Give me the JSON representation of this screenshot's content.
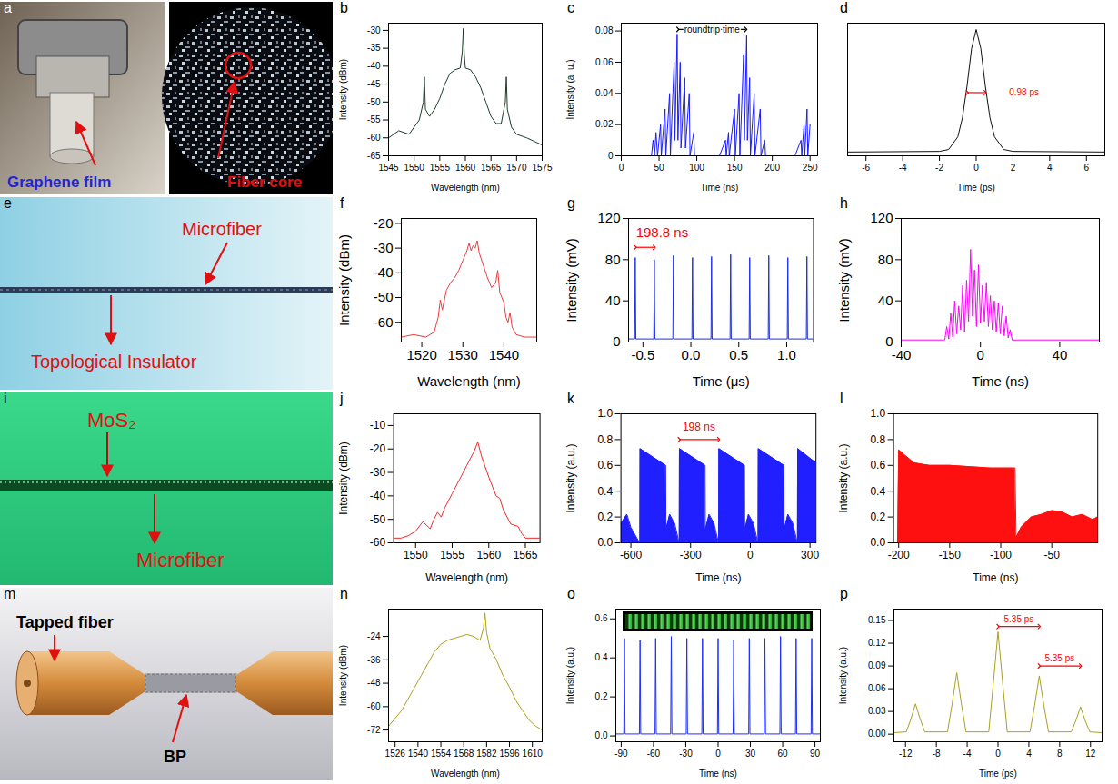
{
  "images": [
    {
      "panel": "a",
      "labels": [
        "Graphene film",
        "Fiber core"
      ]
    },
    {
      "panel": "e",
      "labels": [
        "Microfiber",
        "Topological Insulator"
      ]
    },
    {
      "panel": "i",
      "labels": [
        "MoS₂",
        "Microfiber"
      ]
    },
    {
      "panel": "m",
      "labels": [
        "Tapped fiber",
        "BP"
      ]
    }
  ],
  "chart_data": [
    {
      "panel": "b",
      "type": "line",
      "color": "#1e3b2b",
      "xlabel": "Wavelength (nm)",
      "ylabel": "Intensity (dBm)",
      "xlim": [
        1545,
        1575
      ],
      "ylim": [
        -65,
        -28
      ],
      "xticks": [
        1545,
        1550,
        1555,
        1560,
        1565,
        1570,
        1575
      ],
      "yticks": [
        -65,
        -60,
        -55,
        -50,
        -45,
        -40,
        -35,
        -30
      ],
      "x": [
        1545,
        1547,
        1549,
        1550,
        1551,
        1551.8,
        1552,
        1552.2,
        1553,
        1554,
        1555,
        1556,
        1557,
        1558,
        1559,
        1559.4,
        1559.6,
        1559.8,
        1560,
        1561,
        1562,
        1563,
        1564,
        1565,
        1566,
        1567,
        1567.8,
        1568,
        1568.2,
        1569,
        1570,
        1572,
        1575
      ],
      "values": [
        -60,
        -58,
        -59,
        -57,
        -55,
        -50,
        -43,
        -52,
        -54,
        -52,
        -49,
        -45,
        -42,
        -41,
        -40.5,
        -36,
        -29.5,
        -37,
        -40.5,
        -41,
        -43,
        -46,
        -50,
        -54,
        -56,
        -56,
        -50,
        -43,
        -52,
        -57,
        -59,
        -60,
        -62
      ]
    },
    {
      "panel": "c",
      "type": "line",
      "color": "#1a1aff",
      "xlabel": "Time (ns)",
      "ylabel": "Intensity (a. u.)",
      "xlim": [
        0,
        260
      ],
      "ylim": [
        0,
        0.085
      ],
      "xticks": [
        0,
        50,
        100,
        150,
        200,
        250
      ],
      "yticks": [
        0,
        0.02,
        0.04,
        0.06,
        0.08
      ],
      "annotations": [
        {
          "text": "roundtrip time",
          "x": 120,
          "y": 0.081,
          "color": "#000000",
          "arrow": {
            "from": 75,
            "to": 165,
            "y": 0.081
          }
        }
      ],
      "x": [
        0,
        40,
        42,
        44,
        46,
        48,
        52,
        53,
        58,
        59,
        64,
        65,
        70,
        71,
        74,
        75,
        78,
        79,
        84,
        85,
        90,
        91,
        96,
        97,
        100,
        130,
        138,
        139,
        142,
        143,
        150,
        151,
        156,
        157,
        162,
        163,
        166,
        167,
        170,
        171,
        176,
        177,
        184,
        185,
        190,
        191,
        230,
        238,
        239,
        242,
        243,
        246,
        247,
        250
      ],
      "values": [
        0,
        0,
        0.01,
        0,
        0.015,
        0,
        0.02,
        0,
        0.03,
        0,
        0.04,
        0,
        0.06,
        0.01,
        0.078,
        0.01,
        0.06,
        0.005,
        0.05,
        0.005,
        0.04,
        0,
        0.015,
        0,
        0,
        0,
        0.01,
        0,
        0.015,
        0,
        0.03,
        0,
        0.04,
        0,
        0.065,
        0.01,
        0.077,
        0.01,
        0.05,
        0,
        0.04,
        0,
        0.03,
        0,
        0.01,
        0,
        0,
        0.01,
        0,
        0.02,
        0,
        0.03,
        0,
        0.02
      ]
    },
    {
      "panel": "d",
      "type": "line",
      "color": "#111111",
      "xlabel": "Time (ps)",
      "tick_labels": "x",
      "xlim": [
        -7,
        7
      ],
      "ylim": [
        0,
        10.5
      ],
      "xticks": [
        -6,
        -4,
        -2,
        0,
        2,
        4,
        6
      ],
      "yticks": [],
      "annotations": [
        {
          "text": "0.98 ps",
          "x": 2.6,
          "y": 5,
          "color": "#ff0000",
          "arrow": {
            "from": -0.49,
            "to": 0.49,
            "y": 5
          }
        }
      ],
      "x": [
        -7,
        -2,
        -1.5,
        -1,
        -0.75,
        -0.5,
        -0.25,
        0,
        0.25,
        0.5,
        0.75,
        1,
        1.5,
        2,
        7
      ],
      "values": [
        0.3,
        0.35,
        0.5,
        1.5,
        3,
        5.5,
        8.5,
        10,
        8.5,
        5.5,
        3,
        1.5,
        0.5,
        0.35,
        0.3
      ]
    },
    {
      "panel": "f",
      "type": "line",
      "color": "#ee3b3b",
      "xlabel": "Wavelength (nm)",
      "ylabel": "Intensity (dBm)",
      "xlim": [
        1515,
        1548
      ],
      "ylim": [
        -68,
        -18
      ],
      "xticks": [
        1520,
        1530,
        1540
      ],
      "yticks": [
        -60,
        -50,
        -40,
        -30,
        -20
      ],
      "x": [
        1515,
        1518,
        1521,
        1523,
        1524,
        1524.5,
        1525,
        1526,
        1527,
        1528,
        1529,
        1530,
        1531,
        1531.5,
        1532,
        1532.5,
        1533,
        1533.5,
        1534,
        1535,
        1536,
        1537,
        1538,
        1538.5,
        1539,
        1540,
        1540.5,
        1541,
        1541.5,
        1542,
        1543,
        1545,
        1548
      ],
      "values": [
        -66,
        -65,
        -66,
        -64,
        -58,
        -51,
        -55,
        -47,
        -44,
        -42,
        -39,
        -35,
        -31,
        -28,
        -31,
        -29,
        -30,
        -27,
        -32,
        -37,
        -42,
        -46,
        -44,
        -39,
        -48,
        -52,
        -58,
        -60,
        -56,
        -62,
        -65,
        -66,
        -66
      ]
    },
    {
      "panel": "g",
      "type": "line",
      "color": "#1c2fe0",
      "xlabel": "Time (μs)",
      "ylabel": "Intensity (mV)",
      "xlim": [
        -0.65,
        1.28
      ],
      "ylim": [
        0,
        120
      ],
      "xticks": [
        -0.5,
        {
          "value": 0,
          "label": "0.0"
        },
        0.5,
        {
          "value": 1,
          "label": "1.0"
        }
      ],
      "yticks": [
        0,
        40,
        80,
        120
      ],
      "annotations": [
        {
          "text": "198.8 ns",
          "x": -0.3,
          "y": 106,
          "color": "#ff0000",
          "arrow": {
            "from": -0.58,
            "to": -0.381,
            "y": 92
          }
        }
      ],
      "x": [
        -0.65,
        -0.586,
        -0.58,
        -0.574,
        -0.387,
        -0.381,
        -0.375,
        -0.188,
        -0.182,
        -0.176,
        0.011,
        0.017,
        0.023,
        0.21,
        0.216,
        0.222,
        0.409,
        0.415,
        0.421,
        0.608,
        0.614,
        0.62,
        0.807,
        0.813,
        0.819,
        1.006,
        1.012,
        1.018,
        1.205,
        1.211,
        1.217,
        1.28
      ],
      "values": [
        3,
        3,
        82,
        3,
        3,
        80,
        3,
        3,
        84,
        3,
        3,
        82,
        3,
        3,
        83,
        3,
        3,
        85,
        3,
        3,
        82,
        3,
        3,
        84,
        3,
        3,
        82,
        3,
        3,
        83,
        3,
        3
      ]
    },
    {
      "panel": "h",
      "type": "line",
      "color": "#ff00ff",
      "xlabel": "Time (ns)",
      "ylabel": "Intensity (mV)",
      "xlim": [
        -40,
        60
      ],
      "ylim": [
        0,
        120
      ],
      "xticks": [
        -40,
        0,
        40
      ],
      "yticks": [
        0,
        40,
        80,
        120
      ],
      "x": [
        -40,
        -18,
        -17,
        -16,
        -15,
        -14,
        -13,
        -12,
        -11,
        -10,
        -9,
        -8,
        -7,
        -6,
        -5,
        -4,
        -3,
        -2,
        -1,
        0,
        1,
        2,
        3,
        4,
        5,
        6,
        7,
        8,
        9,
        10,
        11,
        12,
        13,
        14,
        15,
        16,
        60
      ],
      "values": [
        2,
        2,
        15,
        3,
        28,
        5,
        40,
        8,
        35,
        12,
        55,
        10,
        60,
        20,
        90,
        25,
        70,
        15,
        75,
        18,
        55,
        20,
        58,
        15,
        45,
        12,
        40,
        10,
        38,
        8,
        35,
        6,
        25,
        4,
        12,
        2,
        2
      ]
    },
    {
      "panel": "j",
      "type": "line",
      "color": "#ee2a2a",
      "xlabel": "Wavelength (nm)",
      "ylabel": "Intensity (dBm)",
      "xlim": [
        1547,
        1567
      ],
      "ylim": [
        -60,
        -5
      ],
      "xticks": [
        1550,
        1555,
        1560,
        1565
      ],
      "yticks": [
        -60,
        -50,
        -40,
        -30,
        -20,
        -10
      ],
      "x": [
        1547,
        1548,
        1549,
        1550,
        1551,
        1552,
        1552.5,
        1553,
        1553.5,
        1554,
        1555,
        1556,
        1557,
        1558,
        1558.5,
        1559,
        1560,
        1561,
        1561.5,
        1562,
        1563,
        1564,
        1564.5,
        1565,
        1567
      ],
      "values": [
        -58,
        -58,
        -57,
        -55,
        -51,
        -54,
        -50,
        -47,
        -49,
        -45,
        -39,
        -33,
        -27,
        -21,
        -17,
        -23,
        -32,
        -40,
        -41,
        -46,
        -52,
        -53,
        -56,
        -58,
        -58
      ]
    },
    {
      "panel": "k",
      "type": "area",
      "color": "#1f1fff",
      "xlabel": "Time (ns)",
      "ylabel": "Intensity (a.u.)",
      "xlim": [
        -650,
        330
      ],
      "ylim": [
        0,
        1
      ],
      "xticks": [
        -600,
        -300,
        0,
        300
      ],
      "yticks": [
        {
          "value": 0,
          "label": "0.0"
        },
        0.2,
        0.4,
        0.6,
        0.8,
        {
          "value": 1,
          "label": "1.0"
        }
      ],
      "annotations": [
        {
          "text": "198 ns",
          "x": -258,
          "y": 0.9,
          "color": "#ff0000",
          "arrow": {
            "from": -357,
            "to": -159,
            "y": 0.8
          }
        }
      ],
      "x": [
        -650,
        -620,
        -600,
        -556,
        -555,
        -554,
        -425,
        -424,
        -405,
        -380,
        -358,
        -357,
        -356,
        -227,
        -226,
        -207,
        -182,
        -160,
        -159,
        -158,
        -29,
        -28,
        -9,
        16,
        38,
        39,
        40,
        169,
        170,
        189,
        214,
        236,
        237,
        238,
        330
      ],
      "values": [
        0.15,
        0.22,
        0.12,
        0,
        0,
        0.73,
        0.6,
        0.1,
        0.22,
        0.15,
        0,
        0,
        0.73,
        0.6,
        0.1,
        0.22,
        0.15,
        0,
        0,
        0.73,
        0.6,
        0.1,
        0.22,
        0.15,
        0,
        0,
        0.73,
        0.6,
        0.1,
        0.22,
        0.15,
        0,
        0,
        0.73,
        0.62
      ]
    },
    {
      "panel": "l",
      "type": "area",
      "color": "#ff1010",
      "xlabel": "Time (ns)",
      "ylabel": "Intensity (a.u.)",
      "xlim": [
        -205,
        -5
      ],
      "ylim": [
        0,
        1
      ],
      "xticks": [
        -200,
        -150,
        -100,
        -50
      ],
      "yticks": [
        {
          "value": 0,
          "label": "0.0"
        },
        0.2,
        0.4,
        0.6,
        0.8,
        {
          "value": 1,
          "label": "1.0"
        }
      ],
      "x": [
        -205,
        -201,
        -200,
        -185,
        -170,
        -150,
        -130,
        -110,
        -90,
        -86,
        -85,
        -80,
        -70,
        -60,
        -50,
        -40,
        -30,
        -20,
        -10,
        -5
      ],
      "values": [
        0,
        0,
        0.72,
        0.62,
        0.6,
        0.6,
        0.59,
        0.58,
        0.58,
        0.58,
        0.04,
        0.12,
        0.2,
        0.22,
        0.25,
        0.24,
        0.2,
        0.22,
        0.18,
        0.2
      ]
    },
    {
      "panel": "n",
      "type": "line",
      "color": "#a8a020",
      "xlabel": "Wavelength (nm)",
      "ylabel": "Intensity (dBm)",
      "xlim": [
        1522,
        1616
      ],
      "ylim": [
        -78,
        -10
      ],
      "xticks": [
        1526,
        1540,
        1554,
        1568,
        1582,
        1596,
        1610
      ],
      "yticks": [
        -72,
        -60,
        -48,
        -36,
        -24
      ],
      "x": [
        1522,
        1526,
        1530,
        1534,
        1538,
        1542,
        1546,
        1550,
        1554,
        1558,
        1562,
        1566,
        1570,
        1574,
        1578,
        1580,
        1581,
        1582,
        1584,
        1588,
        1592,
        1596,
        1600,
        1604,
        1608,
        1612,
        1616
      ],
      "values": [
        -70,
        -66,
        -62,
        -56,
        -50,
        -44,
        -38,
        -32,
        -28,
        -26,
        -25,
        -24,
        -23,
        -24,
        -26,
        -20,
        -12,
        -22,
        -30,
        -36,
        -44,
        -50,
        -57,
        -62,
        -67,
        -70,
        -72
      ]
    },
    {
      "panel": "o",
      "type": "line",
      "color": "#1f2fff",
      "xlabel": "Time (ns)",
      "ylabel": "Intensity (a.u.)",
      "xlim": [
        -95,
        95
      ],
      "ylim": [
        -0.03,
        0.65
      ],
      "xticks": [
        -90,
        -60,
        -30,
        0,
        30,
        60,
        90
      ],
      "yticks": [
        {
          "value": 0,
          "label": "0.0"
        },
        0.2,
        0.4,
        0.6
      ],
      "x": [
        -95,
        -87.6,
        -87,
        -86.4,
        -73.1,
        -72.5,
        -71.9,
        -58.6,
        -58,
        -57.4,
        -44.1,
        -43.5,
        -42.9,
        -29.6,
        -29,
        -28.4,
        -15.1,
        -14.5,
        -13.9,
        -0.6,
        0,
        0.6,
        13.9,
        14.5,
        15.1,
        28.4,
        29,
        29.6,
        42.9,
        43.5,
        44.1,
        57.4,
        58,
        58.6,
        71.9,
        72.5,
        73.1,
        86.4,
        87,
        87.6,
        95
      ],
      "values": [
        0.01,
        0.01,
        0.5,
        0.01,
        0.01,
        0.49,
        0.01,
        0.01,
        0.5,
        0.01,
        0.01,
        0.51,
        0.01,
        0.01,
        0.5,
        0.01,
        0.01,
        0.5,
        0.01,
        0.01,
        0.5,
        0.01,
        0.01,
        0.49,
        0.01,
        0.01,
        0.5,
        0.01,
        0.01,
        0.5,
        0.01,
        0.01,
        0.51,
        0.01,
        0.01,
        0.5,
        0.01,
        0.01,
        0.5,
        0.01,
        0.01
      ]
    },
    {
      "panel": "p",
      "type": "line",
      "color": "#a8a020",
      "xlabel": "Time (ps)",
      "ylabel": "Intensity (a.u.)",
      "xlim": [
        -13.5,
        13.5
      ],
      "ylim": [
        -0.01,
        0.165
      ],
      "xticks": [
        -12,
        -8,
        -4,
        0,
        4,
        8,
        12
      ],
      "yticks": [
        {
          "value": 0,
          "label": "0.00"
        },
        0.03,
        0.06,
        0.09,
        0.12,
        0.15
      ],
      "annotations": [
        {
          "text": "5.35 ps",
          "x": 2.7,
          "y": 0.152,
          "color": "#ff0000",
          "arrow": {
            "from": 0,
            "to": 5.35,
            "y": 0.142
          }
        },
        {
          "text": "5.35 ps",
          "x": 8.0,
          "y": 0.1,
          "color": "#ff0000",
          "arrow": {
            "from": 5.35,
            "to": 10.7,
            "y": 0.09
          }
        }
      ],
      "x": [
        -13.5,
        -11.9,
        -11.3,
        -10.7,
        -10.1,
        -9.5,
        -6.55,
        -5.95,
        -5.35,
        -4.75,
        -4.15,
        -1.2,
        -0.6,
        0,
        0.6,
        1.2,
        4.15,
        4.75,
        5.35,
        5.95,
        6.55,
        9.5,
        10.1,
        10.7,
        11.3,
        11.9,
        13.5
      ],
      "values": [
        0.002,
        0.003,
        0.02,
        0.04,
        0.02,
        0.003,
        0.003,
        0.04,
        0.081,
        0.04,
        0.003,
        0.003,
        0.068,
        0.135,
        0.068,
        0.003,
        0.003,
        0.038,
        0.077,
        0.038,
        0.003,
        0.003,
        0.018,
        0.036,
        0.018,
        0.003,
        0.002
      ]
    }
  ]
}
